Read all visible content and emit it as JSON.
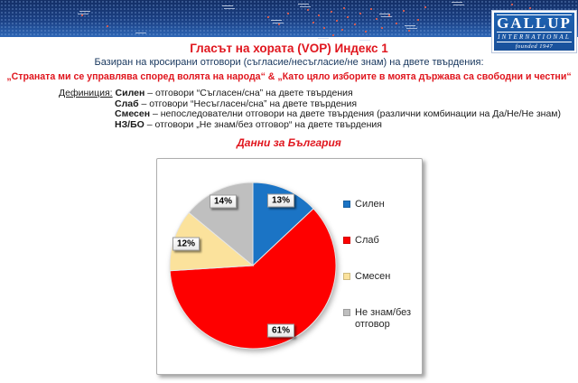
{
  "header": {
    "logo": {
      "name": "GALLUP",
      "subname": "INTERNATIONAL",
      "founded": "founded 1947"
    }
  },
  "titles": {
    "main": "Гласът на хората (VOP) Индекс 1",
    "subtitle": "Базиран на кросирани отговори (съгласие/несъгласие/не знам) на двете твърдения:",
    "statements": "„Страната ми се управлява според волята на народа“ & „Като цяло изборите в моята държава са свободни и честни“"
  },
  "definitions": {
    "label": "Дефиниция:",
    "items": [
      {
        "term": "Силен",
        "text": "– отговори “Съгласен/сна” на двете твърдения"
      },
      {
        "term": "Слаб",
        "text": "– отговори “Несъгласен/сна” на двете твърдения"
      },
      {
        "term": "Смесен",
        "text": "– непоследователни отговори на двете твърдения (различни комбинации на Да/Не/Не знам)"
      },
      {
        "term": "НЗ/БО",
        "text": "– отговори „Не знам/без отговор“ на двете твърдения"
      }
    ]
  },
  "chart_data": {
    "type": "pie",
    "title": "Данни за България",
    "labels": [
      "Силен",
      "Слаб",
      "Смесен",
      "Не знам/без отговор"
    ],
    "values": [
      13,
      61,
      12,
      14
    ],
    "value_labels": [
      "13%",
      "61%",
      "12%",
      "14%"
    ],
    "colors": [
      "#1b74c5",
      "#fe0000",
      "#fbe29c",
      "#bfbfbf"
    ],
    "start_angle_deg": 0,
    "direction": "clockwise",
    "label_radius_fraction": 0.85,
    "legend_position": "right",
    "slice_separator_color": "#e6e6e6"
  }
}
